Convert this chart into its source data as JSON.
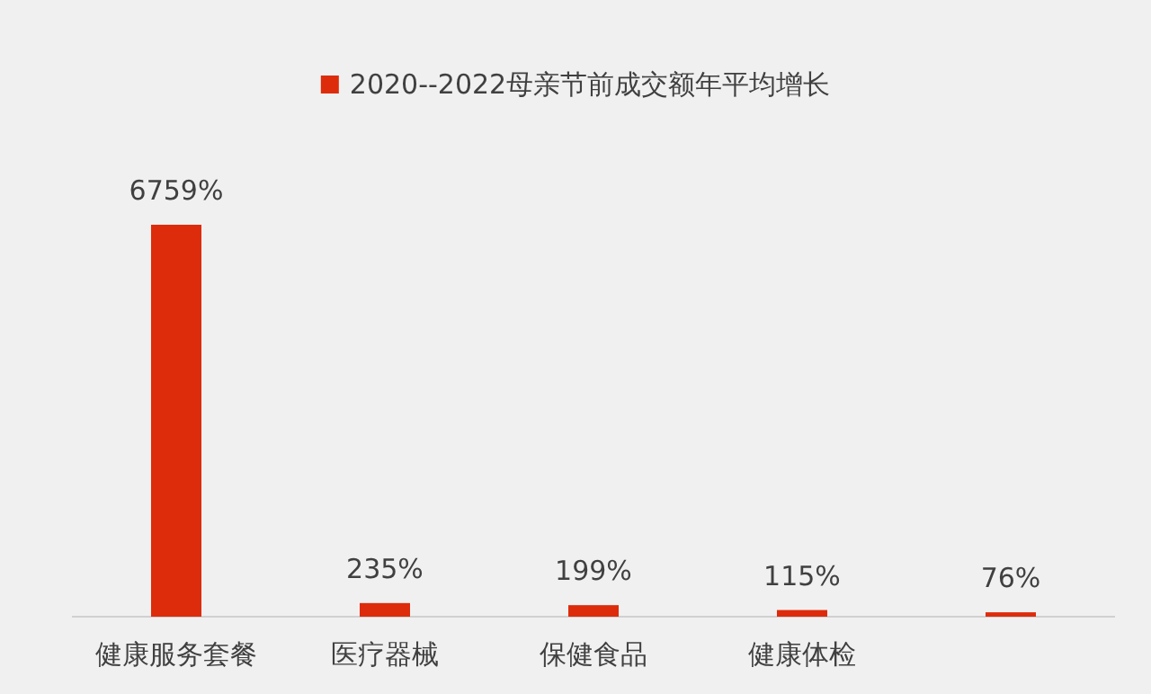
{
  "chart_data": {
    "type": "bar",
    "categories": [
      "健康服务套餐",
      "医疗器械",
      "保健食品",
      "健康体检",
      null
    ],
    "series": [
      {
        "name": "2020--2022母亲节前成交额年平均增长",
        "color": "#dd2c0b",
        "values": [
          6759,
          235,
          199,
          115,
          76
        ],
        "value_labels": [
          "6759%",
          "235%",
          "199%",
          "115%",
          "76%"
        ]
      }
    ],
    "legend": "top"
  }
}
